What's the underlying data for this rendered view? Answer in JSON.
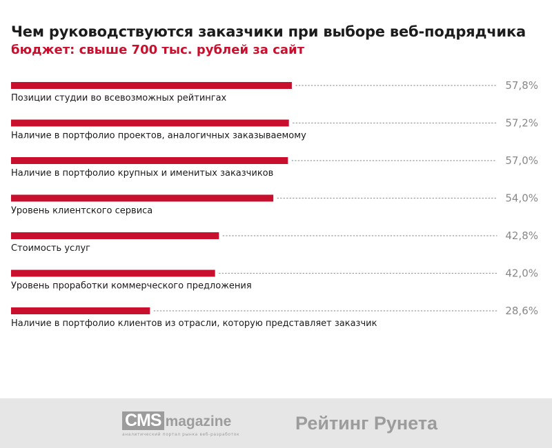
{
  "title": "Чем руководствуются заказчики при выборе веб-подрядчика",
  "subtitle": "бюджет: свыше 700 тыс. рублей за сайт",
  "colors": {
    "bar": "#c8102e",
    "value_text": "#888888",
    "label_text": "#1a1a1a",
    "dots": "#9a9a9a"
  },
  "chart_data": {
    "type": "bar",
    "orientation": "horizontal",
    "xlim": [
      0,
      100
    ],
    "unit": "%",
    "categories": [
      "Позиции студии во всевозможных рейтингах",
      "Наличие в портфолио проектов, аналогичных заказываемому",
      "Наличие в портфолио крупных и именитых заказчиков",
      "Уровень клиентского сервиса",
      "Стоимость услуг",
      "Уровень проработки коммерческого предложения",
      "Наличие в портфолио клиентов из отрасли, которую представляет заказчик"
    ],
    "values": [
      57.8,
      57.2,
      57.0,
      54.0,
      42.8,
      42.0,
      28.6
    ],
    "value_labels": [
      "57,8%",
      "57,2%",
      "57,0%",
      "54,0%",
      "42,8%",
      "42,0%",
      "28,6%"
    ]
  },
  "footer": {
    "cms_badge": "CMS",
    "cms_word": "magazine",
    "cms_tagline": "аналитический портал рынка веб-разработок",
    "runet": "Рейтинг Рунета"
  }
}
